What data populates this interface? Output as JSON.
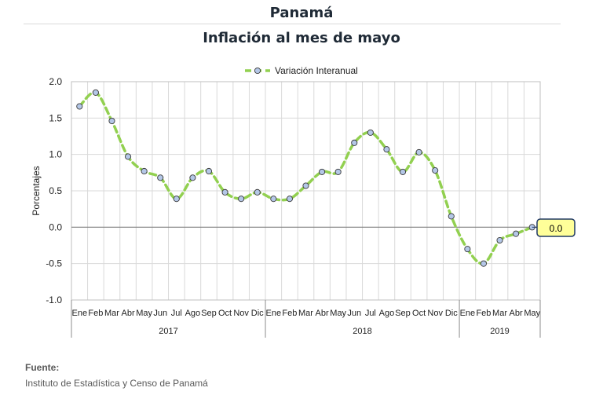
{
  "header": {
    "title": "Panamá",
    "subtitle": "Inflación al mes de mayo"
  },
  "footer": {
    "source_label": "Fuente:",
    "source_text": "Instituto de Estadística y Censo de Panamá"
  },
  "chart_data": {
    "type": "line",
    "title": "Inflación al mes de mayo",
    "ylabel": "Porcentajes",
    "xlabel": "",
    "ylim": [
      -1.0,
      2.0
    ],
    "yticks": [
      "2.0",
      "1.5",
      "1.0",
      "0.5",
      "0.0",
      "-0.5",
      "-1.0"
    ],
    "legend_position": "top",
    "grid": true,
    "categories": [
      "Ene",
      "Feb",
      "Mar",
      "Abr",
      "May",
      "Jun",
      "Jul",
      "Ago",
      "Sep",
      "Oct",
      "Nov",
      "Dic",
      "Ene",
      "Feb",
      "Mar",
      "Abr",
      "May",
      "Jun",
      "Jul",
      "Ago",
      "Sep",
      "Oct",
      "Nov",
      "Dic",
      "Ene",
      "Feb",
      "Mar",
      "Abr",
      "May"
    ],
    "year_groups": [
      {
        "label": "2017",
        "count": 12
      },
      {
        "label": "2018",
        "count": 12
      },
      {
        "label": "2019",
        "count": 5
      }
    ],
    "series": [
      {
        "name": "Variación Interanual",
        "color": "#92d050",
        "marker_color": "#b4c7e7",
        "values": [
          1.66,
          1.85,
          1.46,
          0.97,
          0.77,
          0.68,
          0.39,
          0.68,
          0.77,
          0.48,
          0.39,
          0.48,
          0.39,
          0.39,
          0.57,
          0.76,
          0.76,
          1.16,
          1.3,
          1.07,
          0.76,
          1.03,
          0.78,
          0.15,
          -0.3,
          -0.5,
          -0.18,
          -0.09,
          0.0
        ]
      }
    ],
    "annotation": {
      "text": "0.0",
      "fill": "#ffff99",
      "border": "#1f3864"
    }
  }
}
